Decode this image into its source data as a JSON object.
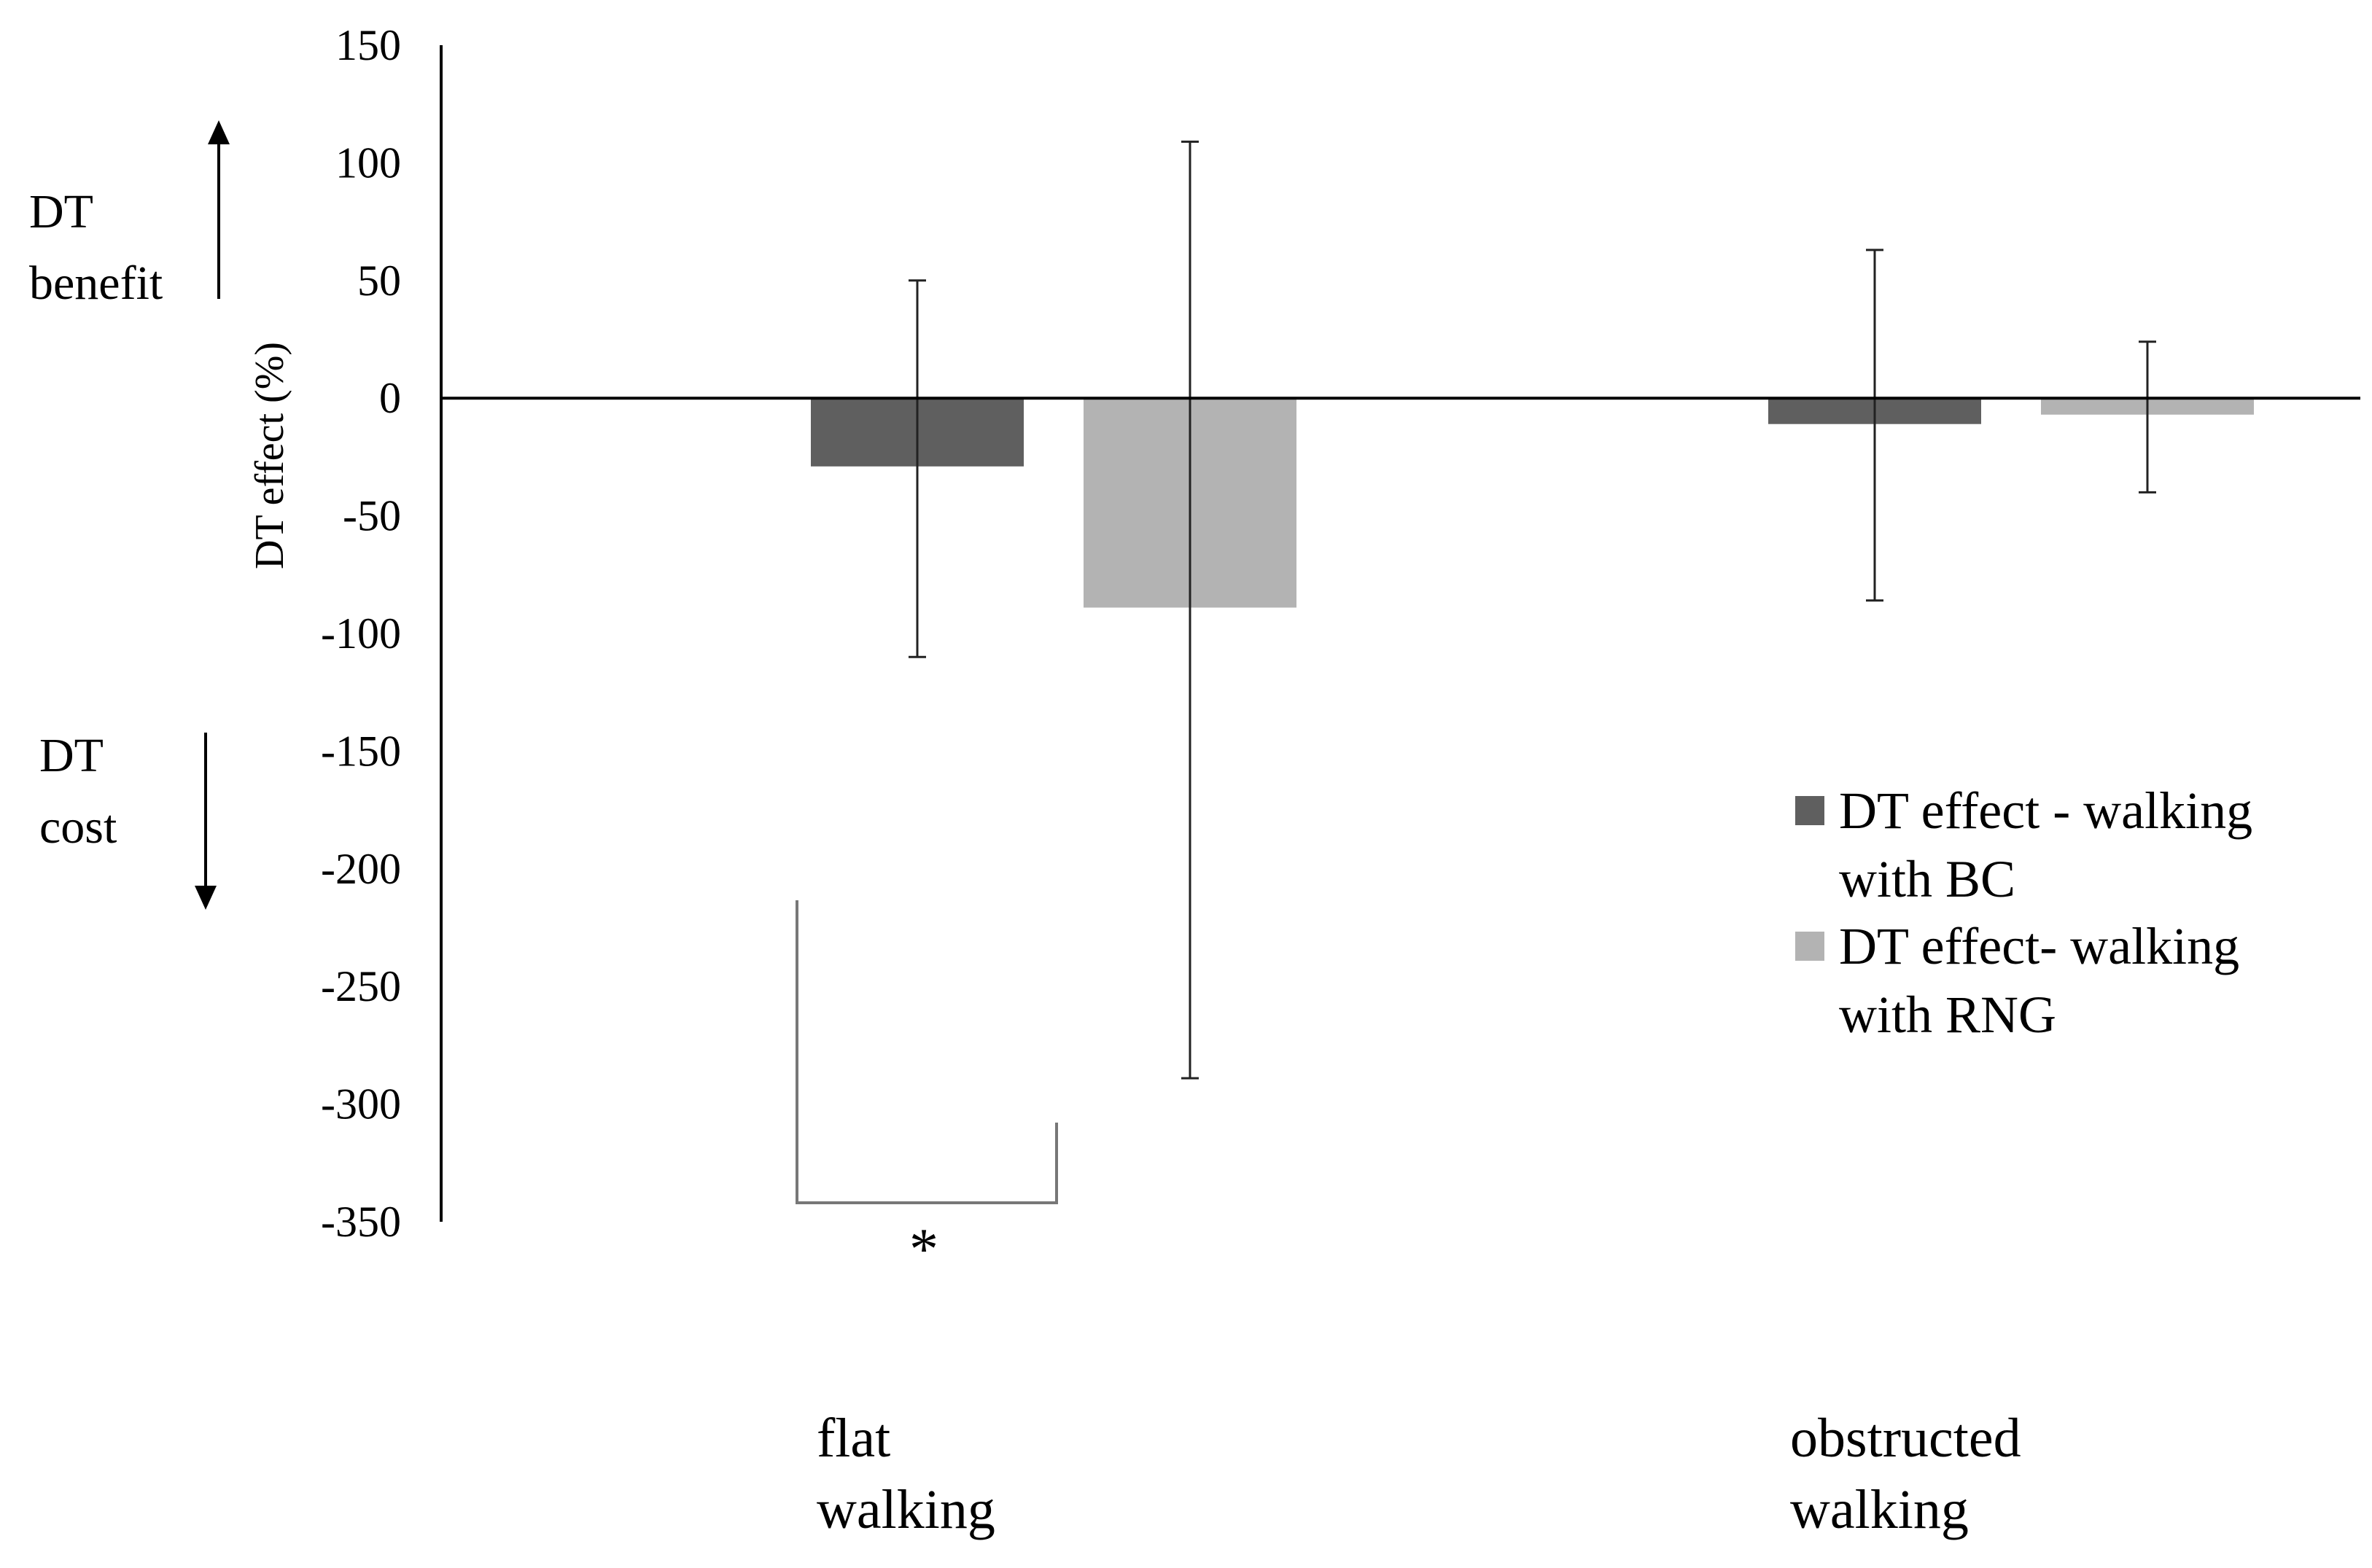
{
  "chart_data": {
    "type": "bar",
    "categories": [
      [
        "flat",
        "walking"
      ],
      [
        "obstructed",
        "walking"
      ]
    ],
    "series": [
      {
        "name": [
          "DT effect - walking",
          "with BC"
        ],
        "color": "#5f5f5f",
        "values": [
          -29,
          -11
        ],
        "error_bars": [
          [
            -110,
            50
          ],
          [
            -86,
            63
          ]
        ]
      },
      {
        "name": [
          "DT effect- walking",
          "with RNG"
        ],
        "color": "#b3b3b3",
        "values": [
          -89,
          -7
        ],
        "error_bars": [
          [
            -289,
            109
          ],
          [
            -40,
            24
          ]
        ]
      }
    ],
    "ylabel": "DT effect (%)",
    "ylim": [
      -350,
      150
    ],
    "yticks": [
      150,
      100,
      50,
      0,
      -50,
      -100,
      -150,
      -200,
      -250,
      -300,
      -350
    ],
    "grid": false,
    "legend_position": "right",
    "annotations": {
      "benefit_label": [
        "DT",
        "benefit"
      ],
      "cost_label": [
        "DT",
        "cost"
      ],
      "significance": {
        "marker": "*",
        "between": [
          "DT effect - walking with BC",
          "DT effect- walking with RNG"
        ],
        "category": "flat walking"
      }
    }
  }
}
